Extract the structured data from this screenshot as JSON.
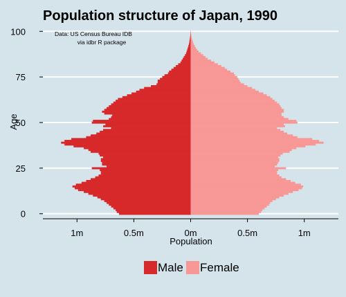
{
  "chart_data": {
    "type": "bar",
    "orientation": "horizontal-pyramid",
    "title": "Population structure of Japan, 1990",
    "annotation_lines": [
      "Data: US Census Bureau IDB",
      "via idbr R package"
    ],
    "xlabel": "Population",
    "ylabel": "Age",
    "xlim": [
      -1300000,
      1300000
    ],
    "ylim": [
      -2,
      102
    ],
    "x_ticks": [
      {
        "value": -1000000,
        "label": "1m"
      },
      {
        "value": -500000,
        "label": "0.5m"
      },
      {
        "value": 0,
        "label": "0m"
      },
      {
        "value": 500000,
        "label": "0.5m"
      },
      {
        "value": 1000000,
        "label": "1m"
      }
    ],
    "y_ticks": [
      {
        "value": 0,
        "label": "0"
      },
      {
        "value": 25,
        "label": "25"
      },
      {
        "value": 50,
        "label": "50"
      },
      {
        "value": 75,
        "label": "75"
      },
      {
        "value": 100,
        "label": "100"
      }
    ],
    "grid": "horizontal",
    "legend_position": "bottom",
    "ages": [
      0,
      1,
      2,
      3,
      4,
      5,
      6,
      7,
      8,
      9,
      10,
      11,
      12,
      13,
      14,
      15,
      16,
      17,
      18,
      19,
      20,
      21,
      22,
      23,
      24,
      25,
      26,
      27,
      28,
      29,
      30,
      31,
      32,
      33,
      34,
      35,
      36,
      37,
      38,
      39,
      40,
      41,
      42,
      43,
      44,
      45,
      46,
      47,
      48,
      49,
      50,
      51,
      52,
      53,
      54,
      55,
      56,
      57,
      58,
      59,
      60,
      61,
      62,
      63,
      64,
      65,
      66,
      67,
      68,
      69,
      70,
      71,
      72,
      73,
      74,
      75,
      76,
      77,
      78,
      79,
      80,
      81,
      82,
      83,
      84,
      85,
      86,
      87,
      88,
      89,
      90,
      91,
      92,
      93,
      94,
      95,
      96,
      97,
      98,
      99,
      100
    ],
    "series": [
      {
        "name": "Male",
        "color": "#d7282a",
        "values": [
          630000,
          650000,
          660000,
          680000,
          700000,
          720000,
          740000,
          760000,
          790000,
          820000,
          860000,
          900000,
          940000,
          990000,
          1020000,
          1040000,
          1010000,
          960000,
          920000,
          880000,
          840000,
          810000,
          790000,
          790000,
          800000,
          870000,
          740000,
          780000,
          780000,
          790000,
          790000,
          770000,
          800000,
          810000,
          880000,
          900000,
          940000,
          1030000,
          1110000,
          1140000,
          1110000,
          1050000,
          920000,
          880000,
          830000,
          800000,
          770000,
          700000,
          770000,
          750000,
          870000,
          860000,
          720000,
          700000,
          690000,
          760000,
          780000,
          760000,
          740000,
          720000,
          700000,
          680000,
          660000,
          640000,
          600000,
          560000,
          520000,
          480000,
          450000,
          410000,
          350000,
          300000,
          290000,
          290000,
          270000,
          250000,
          230000,
          200000,
          190000,
          170000,
          150000,
          130000,
          110000,
          90000,
          80000,
          70000,
          60000,
          50000,
          40000,
          35000,
          30000,
          25000,
          20000,
          15000,
          12000,
          10000,
          7000,
          5000,
          3000,
          2000,
          1000
        ]
      },
      {
        "name": "Female",
        "color": "#f89896",
        "values": [
          600000,
          620000,
          630000,
          650000,
          670000,
          690000,
          700000,
          720000,
          750000,
          780000,
          820000,
          860000,
          900000,
          950000,
          980000,
          990000,
          970000,
          920000,
          880000,
          840000,
          800000,
          780000,
          760000,
          760000,
          770000,
          840000,
          740000,
          760000,
          770000,
          780000,
          780000,
          770000,
          790000,
          810000,
          870000,
          890000,
          930000,
          1010000,
          1100000,
          1170000,
          1130000,
          1070000,
          940000,
          900000,
          850000,
          820000,
          790000,
          760000,
          830000,
          820000,
          940000,
          930000,
          860000,
          820000,
          800000,
          800000,
          820000,
          820000,
          800000,
          790000,
          780000,
          760000,
          740000,
          720000,
          700000,
          670000,
          640000,
          600000,
          570000,
          540000,
          500000,
          470000,
          440000,
          430000,
          420000,
          410000,
          390000,
          380000,
          350000,
          320000,
          300000,
          270000,
          240000,
          210000,
          180000,
          150000,
          130000,
          110000,
          90000,
          70000,
          55000,
          45000,
          35000,
          28000,
          22000,
          16000,
          11000,
          8000,
          5000,
          3000,
          1500
        ]
      }
    ]
  }
}
